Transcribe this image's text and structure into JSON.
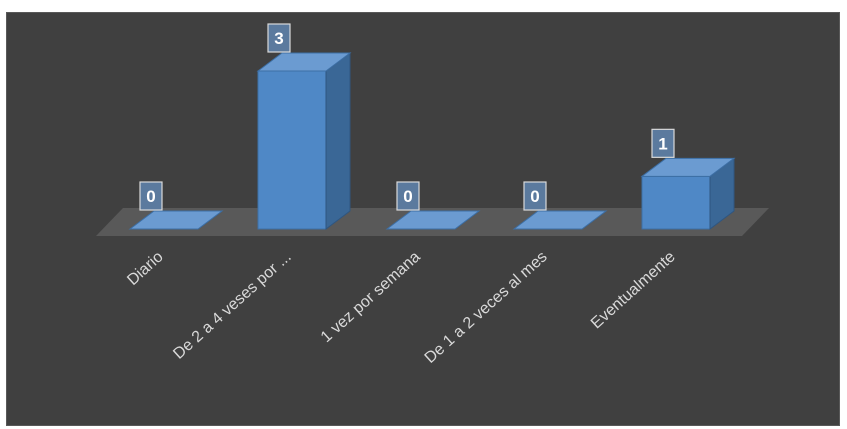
{
  "chart_data": {
    "type": "bar",
    "style": "3d-column",
    "categories": [
      "Diario",
      "De 2 a 4 veses por ...",
      "1 vez por semana",
      "De 1 a 2 veces al mes",
      "Eventualmente"
    ],
    "values": [
      0,
      3,
      0,
      0,
      1
    ],
    "data_labels": [
      "0",
      "3",
      "0",
      "0",
      "1"
    ],
    "title": "",
    "xlabel": "",
    "ylabel": "",
    "ylim": [
      0,
      3
    ],
    "grid": false,
    "legend": "none",
    "colors": {
      "background": "#404040",
      "bar_front": "#4f88c6",
      "bar_side": "#3a6796",
      "bar_top": "#6b9bd1",
      "floor": "#595959",
      "label_text": "#d9d9d9"
    }
  }
}
